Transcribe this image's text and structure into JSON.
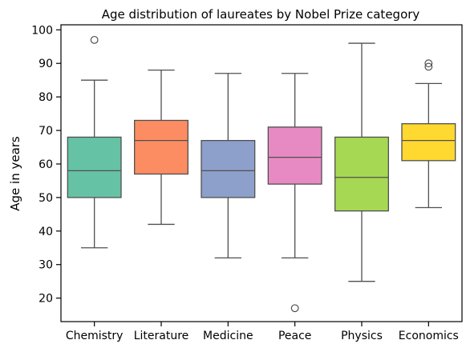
{
  "chart_data": {
    "type": "box",
    "title": "Age distribution of laureates by Nobel Prize category",
    "xlabel": "",
    "ylabel": "Age in years",
    "ylim": [
      13,
      101.5
    ],
    "yticks": [
      20,
      30,
      40,
      50,
      60,
      70,
      80,
      90,
      100
    ],
    "grid": false,
    "categories": [
      "Chemistry",
      "Literature",
      "Medicine",
      "Peace",
      "Physics",
      "Economics"
    ],
    "colors": [
      "#66c2a5",
      "#fc8d62",
      "#8da0cb",
      "#e78ac3",
      "#a6d854",
      "#ffd92f"
    ],
    "boxes": [
      {
        "category": "Chemistry",
        "whisker_low": 35,
        "q1": 50,
        "median": 58,
        "q3": 68,
        "whisker_high": 85,
        "outliers": [
          97
        ]
      },
      {
        "category": "Literature",
        "whisker_low": 42,
        "q1": 57,
        "median": 67,
        "q3": 73,
        "whisker_high": 88,
        "outliers": []
      },
      {
        "category": "Medicine",
        "whisker_low": 32,
        "q1": 50,
        "median": 58,
        "q3": 67,
        "whisker_high": 87,
        "outliers": []
      },
      {
        "category": "Peace",
        "whisker_low": 32,
        "q1": 54,
        "median": 62,
        "q3": 71,
        "whisker_high": 87,
        "outliers": [
          17
        ]
      },
      {
        "category": "Physics",
        "whisker_low": 25,
        "q1": 46,
        "median": 56,
        "q3": 68,
        "whisker_high": 96,
        "outliers": []
      },
      {
        "category": "Economics",
        "whisker_low": 47,
        "q1": 61,
        "median": 67,
        "q3": 72,
        "whisker_high": 84,
        "outliers": [
          89,
          90
        ]
      }
    ]
  }
}
